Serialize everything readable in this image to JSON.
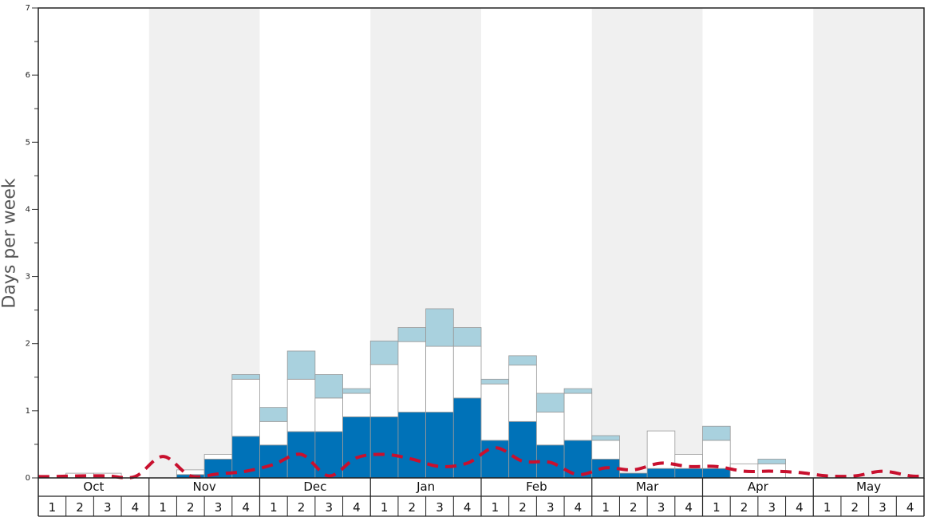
{
  "chart_data": {
    "type": "bar",
    "ylabel": "Days per week",
    "ylim": [
      0,
      7
    ],
    "y_ticks": [
      "0",
      "1",
      "2",
      "3",
      "4",
      "5",
      "6",
      "7"
    ],
    "months": [
      "Oct",
      "Nov",
      "Dec",
      "Jan",
      "Feb",
      "Mar",
      "Apr",
      "May"
    ],
    "week_labels": [
      "1",
      "2",
      "3",
      "4"
    ],
    "grid": false,
    "colors": {
      "dark_blue": "#0072b8",
      "white_segment": "#ffffff",
      "light_blue": "#a9d1de",
      "dashed_line": "#c8102e",
      "alt_month_band": "#f0f0f0"
    },
    "series": [
      {
        "values": [
          0,
          0,
          0,
          0,
          0,
          0.05,
          0.28,
          0.62,
          0.49,
          0.69,
          0.69,
          0.91,
          0.91,
          0.98,
          0.98,
          1.19,
          0.56,
          0.84,
          0.49,
          0.56,
          0.28,
          0.07,
          0.14,
          0.14,
          0.14,
          0,
          0,
          0,
          0,
          0,
          0,
          0
        ]
      },
      {
        "values": [
          0,
          0.07,
          0.07,
          0,
          0,
          0.07,
          0.07,
          0.85,
          0.35,
          0.78,
          0.5,
          0.35,
          0.78,
          1.05,
          0.98,
          0.77,
          0.84,
          0.84,
          0.49,
          0.7,
          0.28,
          0,
          0.56,
          0.21,
          0.42,
          0.21,
          0.21,
          0,
          0,
          0,
          0,
          0
        ]
      },
      {
        "values": [
          0,
          0,
          0,
          0,
          0,
          0,
          0,
          0.07,
          0.21,
          0.42,
          0.35,
          0.07,
          0.35,
          0.21,
          0.56,
          0.28,
          0.07,
          0.14,
          0.28,
          0.07,
          0.07,
          0,
          0,
          0,
          0.21,
          0,
          0.07,
          0,
          0,
          0,
          0,
          0
        ]
      },
      {
        "values": [
          0.02,
          0.03,
          0.03,
          0.02,
          0.32,
          0.03,
          0.06,
          0.1,
          0.2,
          0.35,
          0.03,
          0.3,
          0.35,
          0.28,
          0.17,
          0.22,
          0.45,
          0.25,
          0.23,
          0.05,
          0.15,
          0.12,
          0.22,
          0.17,
          0.17,
          0.1,
          0.1,
          0.08,
          0.03,
          0.03,
          0.1,
          0.03
        ]
      }
    ]
  }
}
